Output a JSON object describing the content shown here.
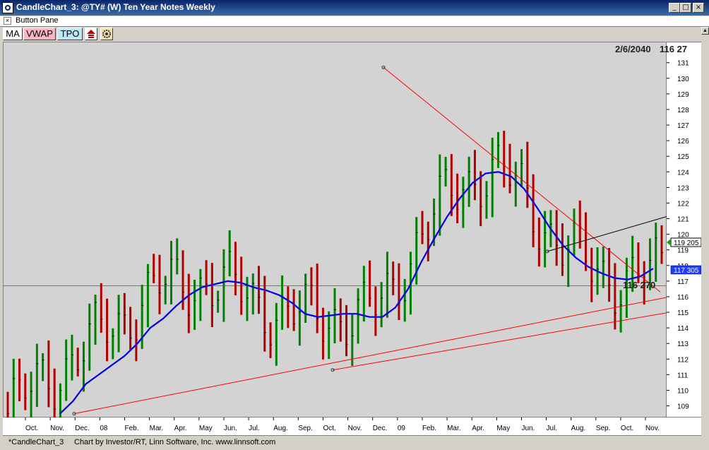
{
  "window": {
    "title": "CandleChart_3: @TY# (W) Ten Year Notes Weekly",
    "minimize_glyph": "_",
    "restore_glyph": "□",
    "close_glyph": "×"
  },
  "button_pane": {
    "close_glyph": "×",
    "label": "Button Pane"
  },
  "toolbar": {
    "ma_label": "MA",
    "vwap_label": "VWAP",
    "tpo_label": "TPO",
    "icon1": "pyramid-icon",
    "icon2": "gear-icon"
  },
  "chart": {
    "date_label": "2/6/2040",
    "price_readout": "116 27",
    "price_marker": "116 270",
    "last_price": "119 205",
    "ma_value": "117 305",
    "price_ticks": [
      "131",
      "130",
      "129",
      "128",
      "127",
      "126",
      "125",
      "124",
      "123",
      "122",
      "121",
      "120",
      "119",
      "118",
      "117",
      "116",
      "115",
      "114",
      "113",
      "112",
      "111",
      "110",
      "109"
    ],
    "months": [
      "Oct.",
      "Nov.",
      "Dec.",
      "08",
      "Feb.",
      "Mar.",
      "Apr.",
      "May",
      "Jun.",
      "Jul.",
      "Aug.",
      "Sep.",
      "Oct.",
      "Nov.",
      "Dec.",
      "09",
      "Feb.",
      "Mar.",
      "Apr.",
      "May",
      "Jun.",
      "Jul.",
      "Aug.",
      "Sep.",
      "Oct.",
      "Nov."
    ],
    "colors": {
      "up": "#008000",
      "down": "#b00000",
      "ma": "#0000e0",
      "trend": "#ff0000",
      "channel": "#000000",
      "background": "#d3d3d3"
    }
  },
  "chart_data": {
    "type": "ohlc",
    "ylim": [
      108.3,
      132.3
    ],
    "ma_closes": [
      108.5,
      109.3,
      110.4,
      111.0,
      111.6,
      112.2,
      113.0,
      114.0,
      114.6,
      115.4,
      116.1,
      116.6,
      116.8,
      117.0,
      116.9,
      116.6,
      116.4,
      116.1,
      115.6,
      114.9,
      114.7,
      114.8,
      114.9,
      114.9,
      114.7,
      114.7,
      115.3,
      116.5,
      118.2,
      119.7,
      121.1,
      122.3,
      123.3,
      123.9,
      124.0,
      123.7,
      122.9,
      121.7,
      120.4,
      119.3,
      118.5,
      117.9,
      117.5,
      117.2,
      117.1,
      117.3,
      117.8
    ],
    "trendlines": [
      {
        "name": "resistance",
        "from": [
          "Dec 08",
          130.7
        ],
        "to": [
          "Nov 09",
          116.3
        ]
      },
      {
        "name": "support-1",
        "from": [
          "Nov 07",
          108.5
        ],
        "to": [
          "Dec 09",
          116.0
        ]
      },
      {
        "name": "support-2",
        "from": [
          "Oct 08",
          111.3
        ],
        "to": [
          "Dec 09",
          115.0
        ]
      },
      {
        "name": "channel",
        "from": [
          "Jul 09",
          118.9
        ],
        "to": [
          "Dec 09",
          121.2
        ]
      }
    ]
  },
  "status": {
    "tab_name": "*CandleChart_3",
    "credit": "Chart by Investor/RT, Linn Software, Inc. www.linnsoft.com"
  }
}
